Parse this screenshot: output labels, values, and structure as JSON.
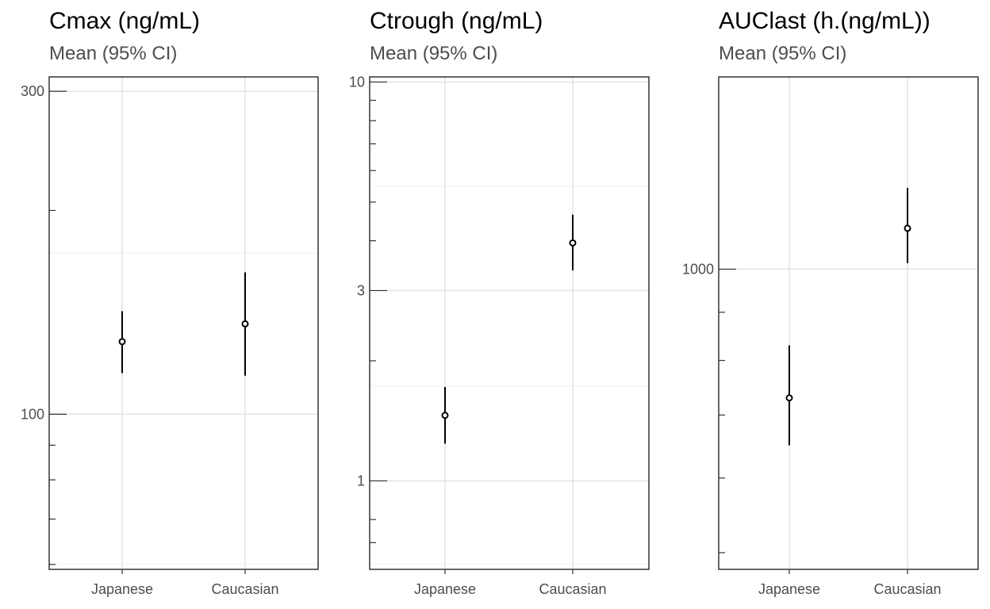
{
  "chart_data": [
    {
      "type": "pointrange",
      "title": "Cmax (ng/mL)",
      "subtitle": "Mean (95% CI)",
      "y_scale": "log",
      "ylim": [
        59,
        315
      ],
      "categories": [
        "Japanese",
        "Caucasian"
      ],
      "major_ticks": [
        {
          "value": 100,
          "label": "100"
        },
        {
          "value": 300,
          "label": "300"
        }
      ],
      "minor_ticks": [
        60,
        70,
        80,
        90,
        200
      ],
      "minor_grid": [
        60,
        173
      ],
      "points": [
        {
          "category": "Japanese",
          "mean": 128,
          "lower": 115,
          "upper": 142
        },
        {
          "category": "Caucasian",
          "mean": 136,
          "lower": 114,
          "upper": 162
        }
      ]
    },
    {
      "type": "pointrange",
      "title": "Ctrough (ng/mL)",
      "subtitle": "Mean (95% CI)",
      "y_scale": "log",
      "ylim": [
        0.6,
        10.3
      ],
      "categories": [
        "Japanese",
        "Caucasian"
      ],
      "major_ticks": [
        {
          "value": 1,
          "label": "1"
        },
        {
          "value": 3,
          "label": "3"
        },
        {
          "value": 10,
          "label": "10"
        }
      ],
      "minor_ticks": [
        0.7,
        0.8,
        2,
        4,
        5,
        6,
        7,
        8,
        9
      ],
      "minor_grid": [
        0.62,
        1.73,
        5.48
      ],
      "points": [
        {
          "category": "Japanese",
          "mean": 1.46,
          "lower": 1.24,
          "upper": 1.72
        },
        {
          "category": "Caucasian",
          "mean": 3.95,
          "lower": 3.37,
          "upper": 4.65
        }
      ]
    },
    {
      "type": "pointrange",
      "title": "AUClast (h.(ng/mL))",
      "subtitle": "Mean (95% CI)",
      "y_scale": "log",
      "ylim": [
        480,
        1600
      ],
      "categories": [
        "Japanese",
        "Caucasian"
      ],
      "major_ticks": [
        {
          "value": 1000,
          "label": "1000"
        }
      ],
      "minor_ticks": [
        500,
        600,
        700,
        800,
        900
      ],
      "minor_grid": [],
      "points": [
        {
          "category": "Japanese",
          "mean": 730,
          "lower": 650,
          "upper": 830
        },
        {
          "category": "Caucasian",
          "mean": 1105,
          "lower": 1015,
          "upper": 1220
        }
      ]
    }
  ]
}
